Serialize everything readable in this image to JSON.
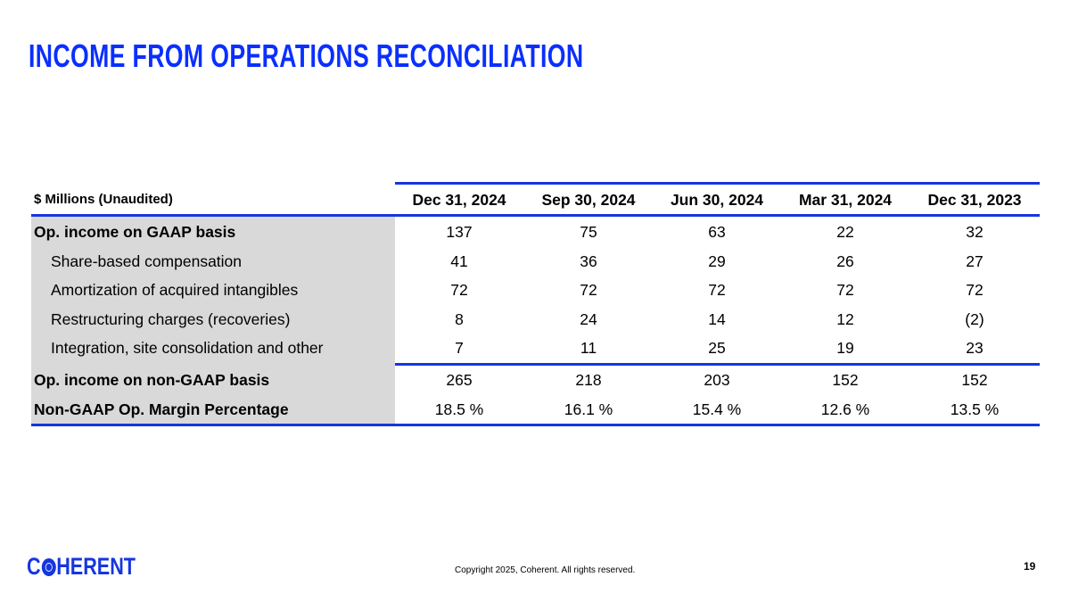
{
  "title": "INCOME FROM OPERATIONS RECONCILIATION",
  "table": {
    "header_label": "$ Millions (Unaudited)",
    "columns": [
      "Dec 31, 2024",
      "Sep 30, 2024",
      "Jun 30, 2024",
      "Mar 31, 2024",
      "Dec 31, 2023"
    ],
    "rows": [
      {
        "label": "Op. income on GAAP basis",
        "bold": true,
        "values": [
          "137",
          "75",
          "63",
          "22",
          "32"
        ]
      },
      {
        "label": "Share-based compensation",
        "bold": false,
        "values": [
          "41",
          "36",
          "29",
          "26",
          "27"
        ]
      },
      {
        "label": "Amortization of acquired intangibles",
        "bold": false,
        "values": [
          "72",
          "72",
          "72",
          "72",
          "72"
        ]
      },
      {
        "label": "Restructuring charges (recoveries)",
        "bold": false,
        "values": [
          "8",
          "24",
          "14",
          "12",
          "(2)"
        ]
      },
      {
        "label": "Integration, site consolidation and other",
        "bold": false,
        "values": [
          "7",
          "11",
          "25",
          "19",
          "23"
        ]
      },
      {
        "label": "Op. income on non-GAAP basis",
        "bold": true,
        "values": [
          "265",
          "218",
          "203",
          "152",
          "152"
        ]
      },
      {
        "label": "Non-GAAP Op. Margin Percentage",
        "bold": true,
        "values": [
          "18.5 %",
          "16.1 %",
          "15.4 %",
          "12.6 %",
          "13.5 %"
        ]
      }
    ]
  },
  "footer": {
    "logo": "COHERENT",
    "copyright": "Copyright 2025, Coherent. All rights reserved.",
    "page_number": "19"
  },
  "colors": {
    "accent": "#1536e0",
    "title": "#0a2fff",
    "label_bg": "#d9d9d9"
  }
}
